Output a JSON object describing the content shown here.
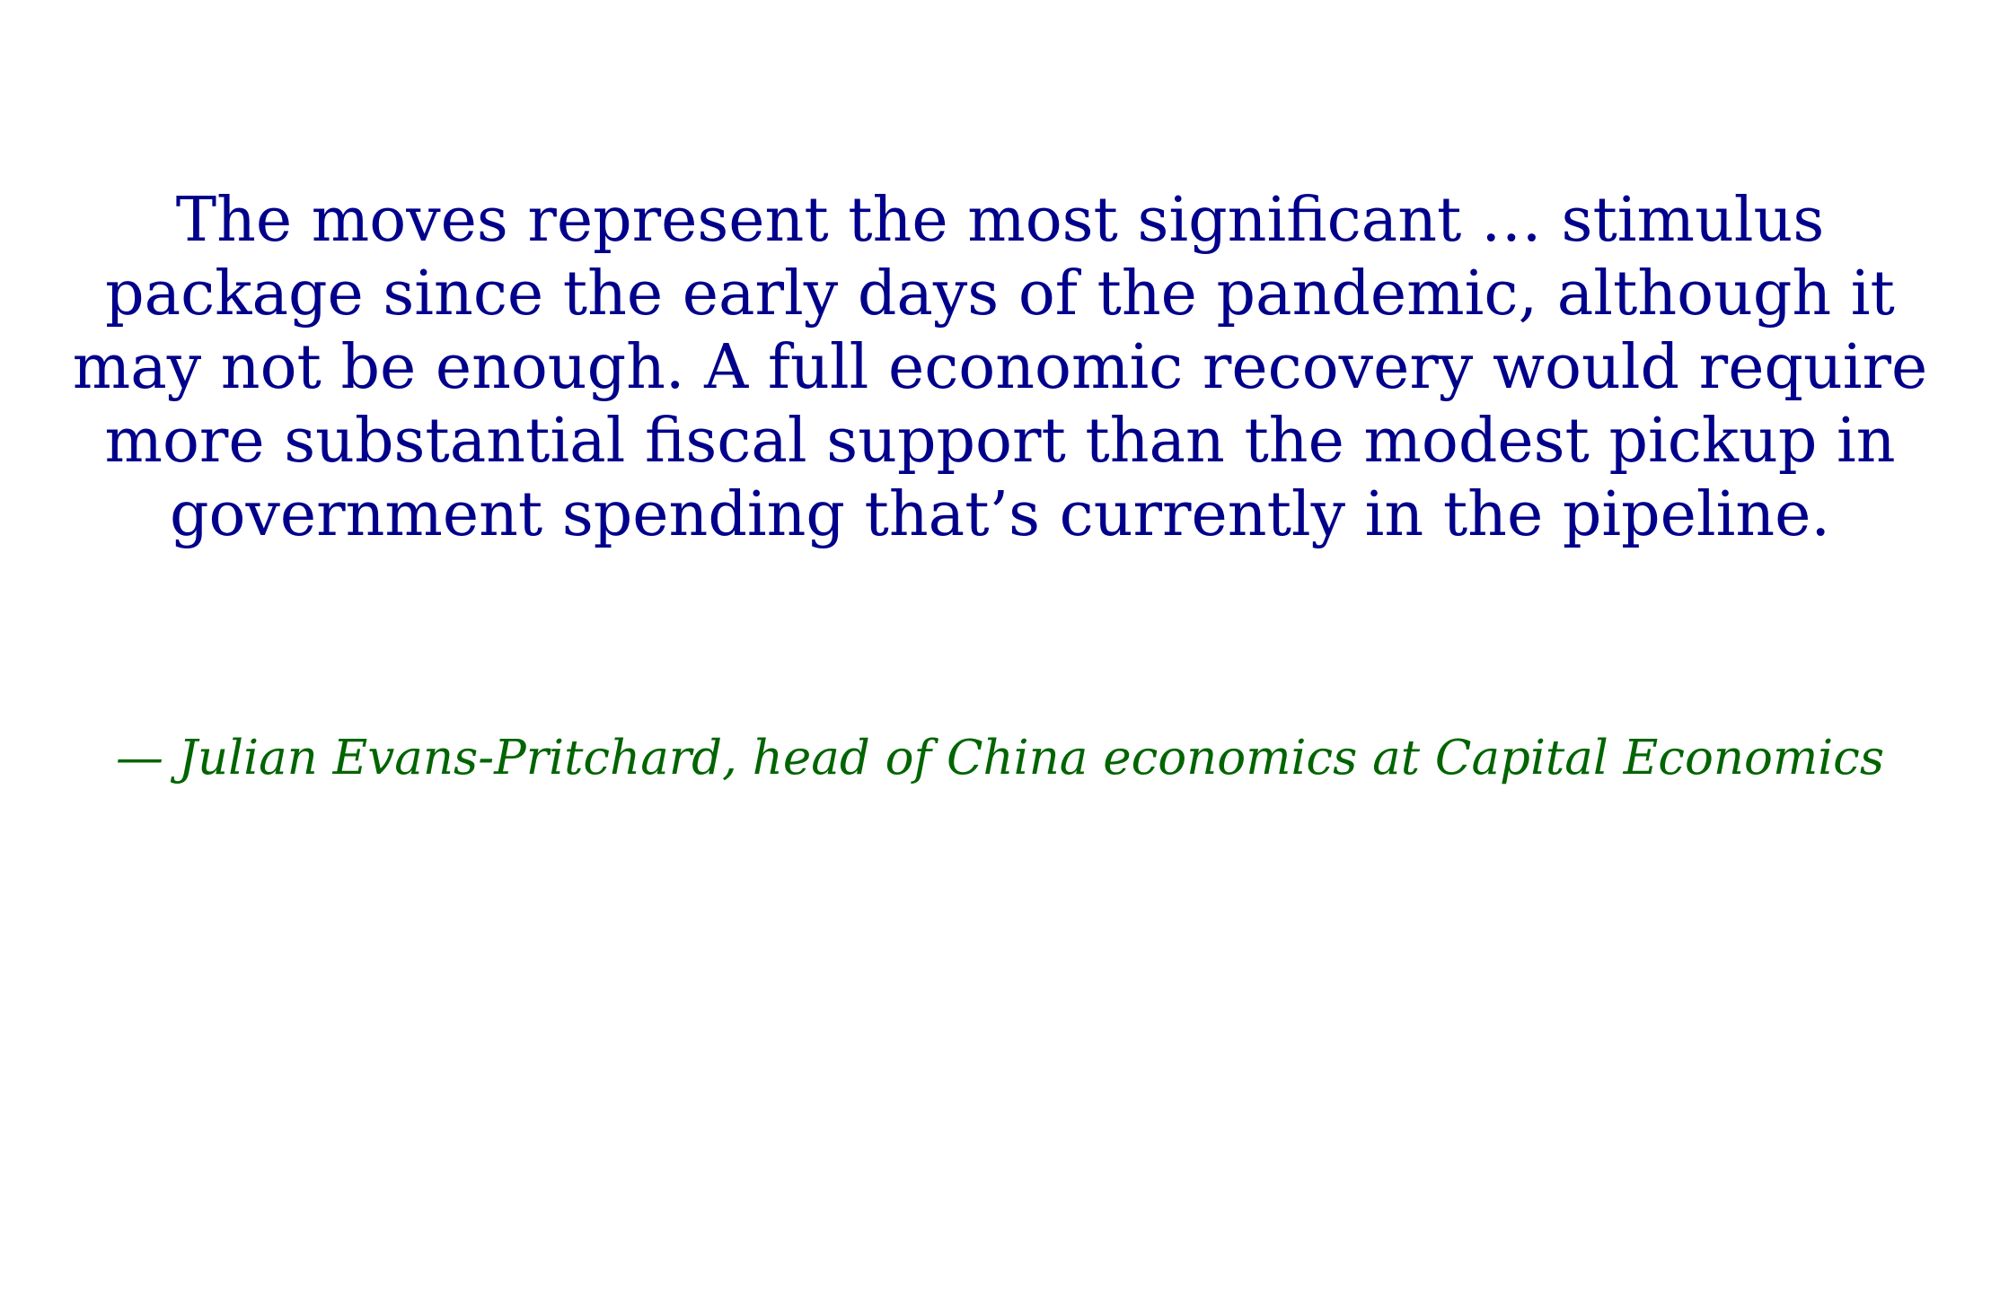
{
  "quote": {
    "lines": [
      "The moves represent the most significant … stimulus",
      "package since the early days of the pandemic, although it",
      "may not be enough. A full economic recovery would require",
      "more substantial fiscal support than the modest pickup in",
      "government spending that’s currently in the pipeline."
    ],
    "attribution": "— Julian Evans-Pritchard, head of China economics at Capital Economics"
  },
  "colors": {
    "quote_text": "#00008B",
    "attribution_text": "#006400",
    "background": "#FFFFFF"
  }
}
